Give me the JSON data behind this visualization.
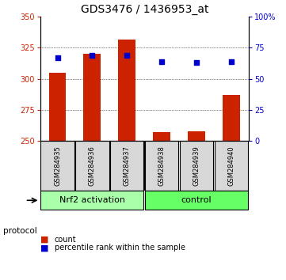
{
  "title": "GDS3476 / 1436953_at",
  "samples": [
    "GSM284935",
    "GSM284936",
    "GSM284937",
    "GSM284938",
    "GSM284939",
    "GSM284940"
  ],
  "counts": [
    305,
    320,
    332,
    257,
    258,
    287
  ],
  "percentiles": [
    317,
    319,
    319,
    314,
    313,
    314
  ],
  "ylim": [
    250,
    350
  ],
  "yticks": [
    250,
    275,
    300,
    325,
    350
  ],
  "y2lim": [
    0,
    100
  ],
  "y2ticks": [
    0,
    25,
    50,
    75,
    100
  ],
  "y2ticklabels": [
    "0",
    "25",
    "50",
    "75",
    "100%"
  ],
  "bar_color": "#cc2200",
  "dot_color": "#0000cc",
  "bar_width": 0.5,
  "groups": [
    {
      "label": "Nrf2 activation",
      "indices": [
        0,
        1,
        2
      ],
      "color": "#aaffaa"
    },
    {
      "label": "control",
      "indices": [
        3,
        4,
        5
      ],
      "color": "#66ff66"
    }
  ],
  "protocol_label": "protocol",
  "legend_count_label": "count",
  "legend_percentile_label": "percentile rank within the sample",
  "background_label": "#d8d8d8",
  "title_fontsize": 10,
  "tick_fontsize": 7,
  "label_fontsize": 7.5,
  "legend_fontsize": 7,
  "group_label_fontsize": 8,
  "sample_fontsize": 6
}
